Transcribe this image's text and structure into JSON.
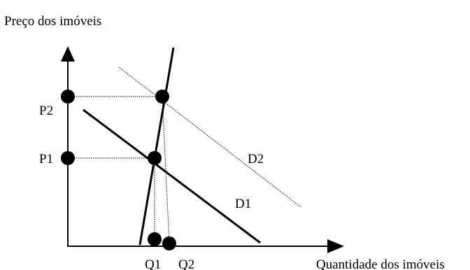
{
  "diagram": {
    "y_axis_label": "Preço dos imóveis",
    "x_axis_label": "Quantidade dos imóveis",
    "price_labels": {
      "p1": "P1",
      "p2": "P2"
    },
    "quantity_labels": {
      "q1": "Q1",
      "q2": "Q2"
    },
    "curve_labels": {
      "d1": "D1",
      "d2": "D2"
    },
    "colors": {
      "ink": "#000000",
      "background": "#ffffff"
    }
  }
}
